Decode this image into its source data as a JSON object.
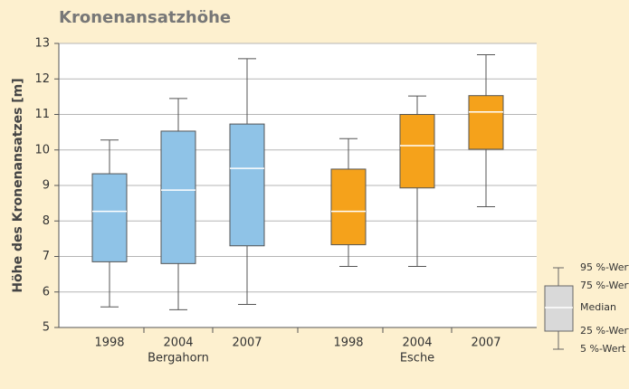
{
  "chart_data": {
    "type": "box",
    "title": "Kronenansatzhöhe",
    "y_label": "Höhe des Kronenansatzes [m]",
    "ylim": [
      5,
      13
    ],
    "yticks": [
      5,
      6,
      7,
      8,
      9,
      10,
      11,
      12,
      13
    ],
    "grid": true,
    "series": [
      {
        "name": "Bergahorn",
        "color": "#8fc3e7",
        "categories": [
          "1998",
          "2004",
          "2007"
        ],
        "whisker_low": [
          5.58,
          5.5,
          5.65
        ],
        "q1": [
          6.85,
          6.8,
          7.3
        ],
        "median": [
          8.27,
          8.87,
          9.48
        ],
        "q3": [
          9.33,
          10.53,
          10.73
        ],
        "whisker_high": [
          10.28,
          11.45,
          12.57
        ]
      },
      {
        "name": "Esche",
        "color": "#f5a21b",
        "categories": [
          "1998",
          "2004",
          "2007"
        ],
        "whisker_low": [
          6.72,
          6.72,
          8.4
        ],
        "q1": [
          7.33,
          8.93,
          10.02
        ],
        "median": [
          8.27,
          10.12,
          11.07
        ],
        "q3": [
          9.46,
          11.0,
          11.53
        ],
        "whisker_high": [
          10.32,
          11.52,
          12.68
        ]
      }
    ],
    "legend": {
      "labels": [
        "95 %-Wert",
        "75 %-Wert",
        "Median",
        "25 %-Wert",
        "5 %-Wert"
      ],
      "color": "#d9d9d9"
    }
  }
}
